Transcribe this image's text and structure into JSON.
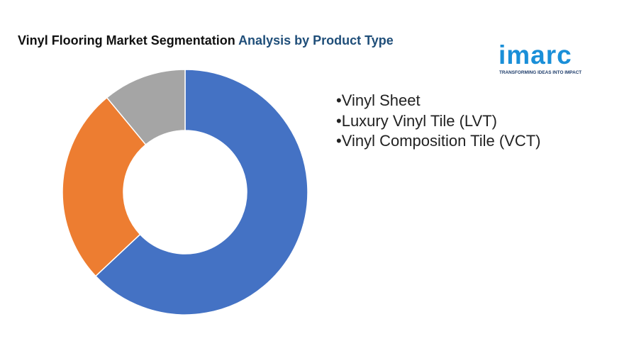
{
  "header": {
    "title_part1": "Vinyl Flooring Market Segmentation",
    "title_part2": "Analysis by Product Type"
  },
  "logo": {
    "word": "imarc",
    "tagline": "TRANSFORMING IDEAS INTO IMPACT"
  },
  "chart_data": {
    "type": "pie",
    "variant": "donut",
    "categories": [
      "Vinyl Sheet",
      "Luxury Vinyl Tile (LVT)",
      "Vinyl Composition Tile (VCT)"
    ],
    "values": [
      63,
      26,
      11
    ],
    "colors": [
      "#4472c4",
      "#ed7d31",
      "#a5a5a5"
    ],
    "legend": [
      "•Vinyl Sheet",
      "•Luxury Vinyl Tile (LVT)",
      "•Vinyl Composition Tile (VCT)"
    ],
    "legend_position": "right"
  }
}
